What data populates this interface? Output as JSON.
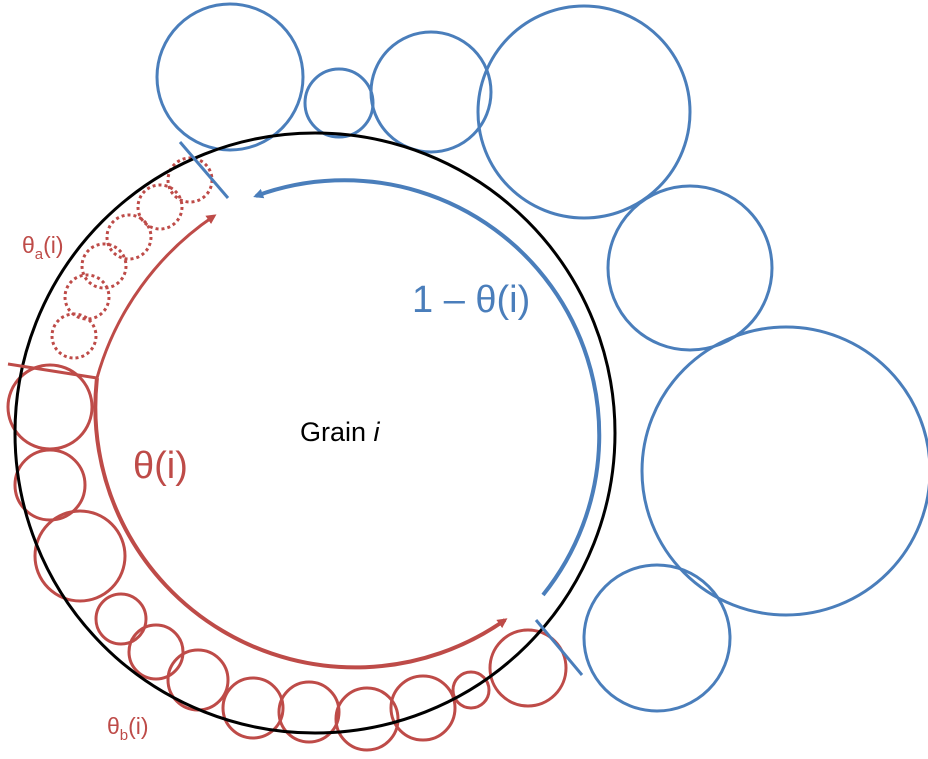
{
  "labels": {
    "grain": "Grain ",
    "grain_index": "i",
    "theta": "θ(i)",
    "one_minus_theta": "1 – θ(i)",
    "theta_a_base": "θ",
    "theta_a_sub": "a",
    "theta_a_arg": "(i)",
    "theta_b_base": "θ",
    "theta_b_sub": "b",
    "theta_b_arg": "(i)"
  },
  "colors": {
    "grain": "#000000",
    "blue": "#4a7ebb",
    "red": "#be4b48"
  }
}
